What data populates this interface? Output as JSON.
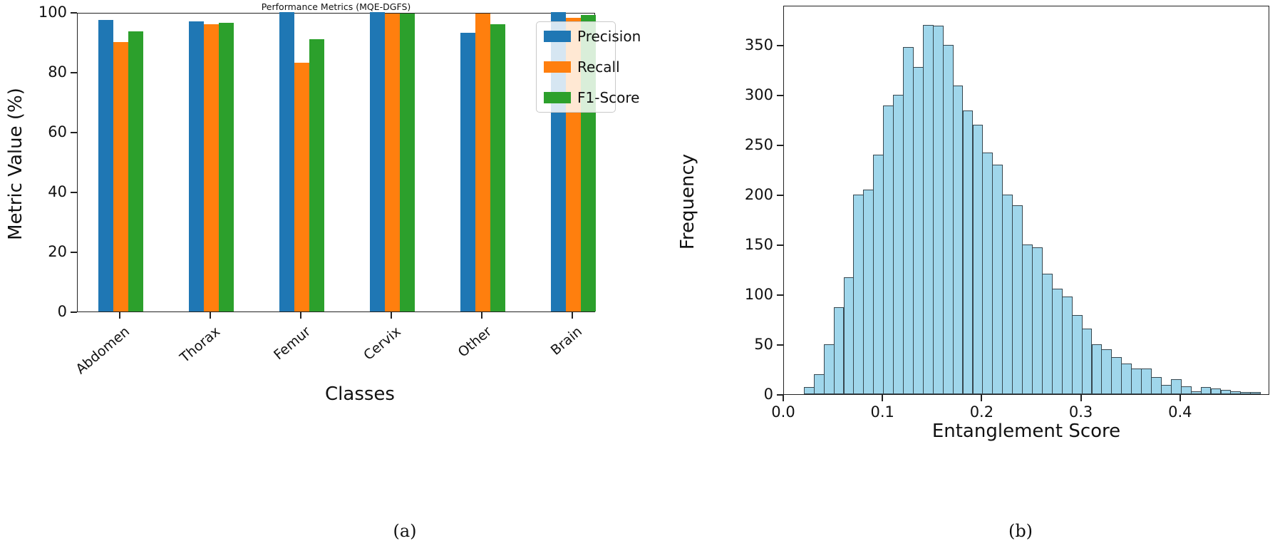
{
  "chart_data": [
    {
      "type": "bar",
      "title": "Performance Metrics (MQE-DGFS)",
      "xlabel": "Classes",
      "ylabel": "Metric Value (%)",
      "caption": "(a)",
      "categories": [
        "Abdomen",
        "Thorax",
        "Femur",
        "Cervix",
        "Other",
        "Brain"
      ],
      "series": [
        {
          "name": "Precision",
          "color": "#1f77b4",
          "values": [
            97.5,
            97,
            100,
            100,
            93,
            100
          ]
        },
        {
          "name": "Recall",
          "color": "#ff7f0e",
          "values": [
            90,
            96,
            83,
            99.5,
            99.5,
            98
          ]
        },
        {
          "name": "F1-Score",
          "color": "#2ca02c",
          "values": [
            93.5,
            96.5,
            91,
            99.5,
            96,
            99
          ]
        }
      ],
      "ylim": [
        0,
        100
      ],
      "yticks": [
        0,
        20,
        40,
        60,
        80,
        100
      ],
      "legend_position": "upper right",
      "grid": false
    },
    {
      "type": "bar",
      "subtype": "histogram",
      "title": "",
      "xlabel": "Entanglement Score",
      "ylabel": "Frequency",
      "caption": "(b)",
      "bar_color": "#9fd6eb",
      "edge_color": "#37474f",
      "bin_start": 0.02,
      "bin_width": 0.01,
      "frequencies": [
        7,
        20,
        50,
        87,
        117,
        200,
        205,
        240,
        289,
        300,
        348,
        328,
        370,
        369,
        350,
        309,
        284,
        270,
        242,
        230,
        200,
        189,
        150,
        147,
        121,
        106,
        98,
        79,
        66,
        50,
        45,
        37,
        31,
        26,
        26,
        17,
        9,
        15,
        8,
        3,
        7,
        6,
        4,
        3,
        2,
        2
      ],
      "xlim": [
        0,
        0.49
      ],
      "ylim": [
        0,
        380
      ],
      "yticks": [
        0,
        50,
        100,
        150,
        200,
        250,
        300,
        350
      ],
      "xticks": [
        0.0,
        0.1,
        0.2,
        0.3,
        0.4
      ],
      "grid": false
    }
  ]
}
